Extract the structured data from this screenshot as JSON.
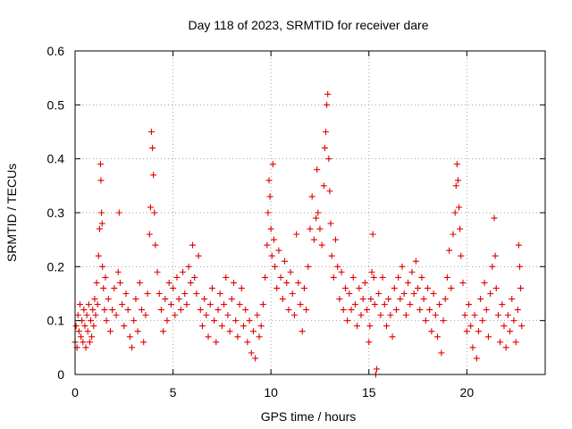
{
  "chart_data": {
    "type": "scatter",
    "title": "Day 118 of 2023, SRMTID for receiver dare",
    "xlabel": "GPS time / hours",
    "ylabel": "SRMTID / TECUs",
    "xlim": [
      0,
      24
    ],
    "ylim": [
      0,
      0.6
    ],
    "xticks": [
      0,
      5,
      10,
      15,
      20
    ],
    "yticks": [
      0,
      0.1,
      0.2,
      0.3,
      0.4,
      0.5,
      0.6
    ],
    "xtick_labels": [
      "0",
      "5",
      "10",
      "15",
      "20"
    ],
    "ytick_labels": [
      "0",
      "0.1",
      "0.2",
      "0.3",
      "0.4",
      "0.5",
      "0.6"
    ],
    "grid": true,
    "marker": "+",
    "color": "#e00000",
    "series": [
      {
        "name": "SRMTID",
        "points": [
          [
            0.0,
            0.06
          ],
          [
            0.05,
            0.09
          ],
          [
            0.1,
            0.05
          ],
          [
            0.15,
            0.11
          ],
          [
            0.2,
            0.08
          ],
          [
            0.25,
            0.13
          ],
          [
            0.3,
            0.07
          ],
          [
            0.35,
            0.1
          ],
          [
            0.4,
            0.06
          ],
          [
            0.45,
            0.12
          ],
          [
            0.5,
            0.09
          ],
          [
            0.55,
            0.05
          ],
          [
            0.6,
            0.11
          ],
          [
            0.65,
            0.08
          ],
          [
            0.7,
            0.13
          ],
          [
            0.75,
            0.06
          ],
          [
            0.8,
            0.1
          ],
          [
            0.85,
            0.07
          ],
          [
            0.9,
            0.12
          ],
          [
            0.95,
            0.09
          ],
          [
            1.0,
            0.14
          ],
          [
            1.05,
            0.11
          ],
          [
            1.1,
            0.17
          ],
          [
            1.15,
            0.13
          ],
          [
            1.2,
            0.22
          ],
          [
            1.25,
            0.27
          ],
          [
            1.3,
            0.39
          ],
          [
            1.32,
            0.36
          ],
          [
            1.35,
            0.3
          ],
          [
            1.38,
            0.28
          ],
          [
            1.4,
            0.2
          ],
          [
            1.45,
            0.16
          ],
          [
            1.5,
            0.12
          ],
          [
            1.55,
            0.18
          ],
          [
            1.6,
            0.1
          ],
          [
            1.7,
            0.14
          ],
          [
            1.8,
            0.08
          ],
          [
            1.9,
            0.12
          ],
          [
            2.0,
            0.16
          ],
          [
            2.1,
            0.11
          ],
          [
            2.2,
            0.19
          ],
          [
            2.25,
            0.3
          ],
          [
            2.3,
            0.17
          ],
          [
            2.4,
            0.13
          ],
          [
            2.5,
            0.09
          ],
          [
            2.6,
            0.15
          ],
          [
            2.7,
            0.12
          ],
          [
            2.8,
            0.07
          ],
          [
            2.9,
            0.05
          ],
          [
            3.0,
            0.1
          ],
          [
            3.1,
            0.14
          ],
          [
            3.2,
            0.08
          ],
          [
            3.3,
            0.17
          ],
          [
            3.4,
            0.12
          ],
          [
            3.5,
            0.06
          ],
          [
            3.6,
            0.11
          ],
          [
            3.7,
            0.15
          ],
          [
            3.8,
            0.26
          ],
          [
            3.85,
            0.31
          ],
          [
            3.9,
            0.45
          ],
          [
            3.95,
            0.42
          ],
          [
            4.0,
            0.37
          ],
          [
            4.05,
            0.3
          ],
          [
            4.1,
            0.24
          ],
          [
            4.2,
            0.19
          ],
          [
            4.3,
            0.15
          ],
          [
            4.4,
            0.12
          ],
          [
            4.5,
            0.08
          ],
          [
            4.6,
            0.14
          ],
          [
            4.7,
            0.1
          ],
          [
            4.8,
            0.17
          ],
          [
            4.9,
            0.13
          ],
          [
            5.0,
            0.16
          ],
          [
            5.1,
            0.11
          ],
          [
            5.2,
            0.18
          ],
          [
            5.3,
            0.14
          ],
          [
            5.4,
            0.12
          ],
          [
            5.5,
            0.19
          ],
          [
            5.6,
            0.15
          ],
          [
            5.7,
            0.13
          ],
          [
            5.8,
            0.2
          ],
          [
            5.9,
            0.17
          ],
          [
            6.0,
            0.24
          ],
          [
            6.1,
            0.18
          ],
          [
            6.2,
            0.15
          ],
          [
            6.3,
            0.22
          ],
          [
            6.4,
            0.12
          ],
          [
            6.5,
            0.09
          ],
          [
            6.6,
            0.14
          ],
          [
            6.7,
            0.11
          ],
          [
            6.8,
            0.07
          ],
          [
            6.9,
            0.13
          ],
          [
            7.0,
            0.16
          ],
          [
            7.1,
            0.1
          ],
          [
            7.2,
            0.06
          ],
          [
            7.3,
            0.12
          ],
          [
            7.4,
            0.15
          ],
          [
            7.5,
            0.09
          ],
          [
            7.6,
            0.13
          ],
          [
            7.7,
            0.18
          ],
          [
            7.8,
            0.11
          ],
          [
            7.9,
            0.08
          ],
          [
            8.0,
            0.14
          ],
          [
            8.1,
            0.17
          ],
          [
            8.2,
            0.1
          ],
          [
            8.3,
            0.07
          ],
          [
            8.4,
            0.13
          ],
          [
            8.5,
            0.16
          ],
          [
            8.6,
            0.09
          ],
          [
            8.7,
            0.12
          ],
          [
            8.8,
            0.06
          ],
          [
            8.9,
            0.1
          ],
          [
            9.0,
            0.04
          ],
          [
            9.1,
            0.08
          ],
          [
            9.2,
            0.03
          ],
          [
            9.3,
            0.11
          ],
          [
            9.4,
            0.07
          ],
          [
            9.5,
            0.09
          ],
          [
            9.6,
            0.13
          ],
          [
            9.7,
            0.18
          ],
          [
            9.8,
            0.24
          ],
          [
            9.85,
            0.3
          ],
          [
            9.9,
            0.36
          ],
          [
            9.95,
            0.33
          ],
          [
            10.0,
            0.27
          ],
          [
            10.05,
            0.22
          ],
          [
            10.1,
            0.39
          ],
          [
            10.15,
            0.25
          ],
          [
            10.2,
            0.2
          ],
          [
            10.3,
            0.16
          ],
          [
            10.4,
            0.23
          ],
          [
            10.5,
            0.18
          ],
          [
            10.6,
            0.14
          ],
          [
            10.7,
            0.21
          ],
          [
            10.8,
            0.17
          ],
          [
            10.9,
            0.12
          ],
          [
            11.0,
            0.19
          ],
          [
            11.1,
            0.15
          ],
          [
            11.2,
            0.11
          ],
          [
            11.3,
            0.26
          ],
          [
            11.4,
            0.17
          ],
          [
            11.5,
            0.13
          ],
          [
            11.6,
            0.08
          ],
          [
            11.7,
            0.16
          ],
          [
            11.8,
            0.12
          ],
          [
            11.9,
            0.2
          ],
          [
            12.0,
            0.27
          ],
          [
            12.1,
            0.33
          ],
          [
            12.2,
            0.25
          ],
          [
            12.3,
            0.29
          ],
          [
            12.35,
            0.38
          ],
          [
            12.4,
            0.3
          ],
          [
            12.5,
            0.27
          ],
          [
            12.6,
            0.24
          ],
          [
            12.7,
            0.35
          ],
          [
            12.75,
            0.42
          ],
          [
            12.8,
            0.45
          ],
          [
            12.85,
            0.5
          ],
          [
            12.9,
            0.52
          ],
          [
            12.95,
            0.4
          ],
          [
            13.0,
            0.34
          ],
          [
            13.05,
            0.28
          ],
          [
            13.1,
            0.22
          ],
          [
            13.2,
            0.18
          ],
          [
            13.3,
            0.25
          ],
          [
            13.4,
            0.2
          ],
          [
            13.5,
            0.14
          ],
          [
            13.6,
            0.19
          ],
          [
            13.7,
            0.12
          ],
          [
            13.8,
            0.16
          ],
          [
            13.9,
            0.1
          ],
          [
            14.0,
            0.15
          ],
          [
            14.1,
            0.12
          ],
          [
            14.2,
            0.18
          ],
          [
            14.3,
            0.13
          ],
          [
            14.4,
            0.09
          ],
          [
            14.5,
            0.16
          ],
          [
            14.6,
            0.11
          ],
          [
            14.7,
            0.14
          ],
          [
            14.8,
            0.17
          ],
          [
            14.9,
            0.12
          ],
          [
            15.0,
            0.06
          ],
          [
            15.05,
            0.09
          ],
          [
            15.1,
            0.14
          ],
          [
            15.15,
            0.19
          ],
          [
            15.2,
            0.26
          ],
          [
            15.25,
            0.18
          ],
          [
            15.3,
            0.13
          ],
          [
            15.35,
            0.0
          ],
          [
            15.4,
            0.01
          ],
          [
            15.5,
            0.15
          ],
          [
            15.6,
            0.11
          ],
          [
            15.7,
            0.18
          ],
          [
            15.8,
            0.13
          ],
          [
            15.9,
            0.09
          ],
          [
            16.0,
            0.14
          ],
          [
            16.1,
            0.11
          ],
          [
            16.2,
            0.07
          ],
          [
            16.3,
            0.16
          ],
          [
            16.4,
            0.12
          ],
          [
            16.5,
            0.18
          ],
          [
            16.6,
            0.14
          ],
          [
            16.7,
            0.2
          ],
          [
            16.8,
            0.15
          ],
          [
            16.9,
            0.11
          ],
          [
            17.0,
            0.17
          ],
          [
            17.1,
            0.13
          ],
          [
            17.2,
            0.19
          ],
          [
            17.3,
            0.15
          ],
          [
            17.4,
            0.21
          ],
          [
            17.5,
            0.16
          ],
          [
            17.6,
            0.12
          ],
          [
            17.7,
            0.18
          ],
          [
            17.8,
            0.14
          ],
          [
            17.9,
            0.1
          ],
          [
            18.0,
            0.16
          ],
          [
            18.1,
            0.12
          ],
          [
            18.2,
            0.08
          ],
          [
            18.3,
            0.15
          ],
          [
            18.4,
            0.11
          ],
          [
            18.5,
            0.07
          ],
          [
            18.6,
            0.13
          ],
          [
            18.7,
            0.04
          ],
          [
            18.8,
            0.1
          ],
          [
            18.9,
            0.14
          ],
          [
            19.0,
            0.18
          ],
          [
            19.1,
            0.23
          ],
          [
            19.2,
            0.16
          ],
          [
            19.3,
            0.26
          ],
          [
            19.4,
            0.3
          ],
          [
            19.45,
            0.35
          ],
          [
            19.5,
            0.39
          ],
          [
            19.55,
            0.36
          ],
          [
            19.6,
            0.31
          ],
          [
            19.65,
            0.27
          ],
          [
            19.7,
            0.22
          ],
          [
            19.8,
            0.17
          ],
          [
            19.9,
            0.11
          ],
          [
            20.0,
            0.08
          ],
          [
            20.1,
            0.13
          ],
          [
            20.2,
            0.09
          ],
          [
            20.3,
            0.05
          ],
          [
            20.4,
            0.11
          ],
          [
            20.5,
            0.03
          ],
          [
            20.6,
            0.08
          ],
          [
            20.7,
            0.14
          ],
          [
            20.8,
            0.1
          ],
          [
            20.9,
            0.17
          ],
          [
            21.0,
            0.12
          ],
          [
            21.1,
            0.07
          ],
          [
            21.2,
            0.15
          ],
          [
            21.3,
            0.2
          ],
          [
            21.4,
            0.29
          ],
          [
            21.45,
            0.22
          ],
          [
            21.5,
            0.16
          ],
          [
            21.6,
            0.11
          ],
          [
            21.7,
            0.06
          ],
          [
            21.8,
            0.13
          ],
          [
            21.9,
            0.09
          ],
          [
            22.0,
            0.05
          ],
          [
            22.1,
            0.11
          ],
          [
            22.2,
            0.08
          ],
          [
            22.3,
            0.14
          ],
          [
            22.4,
            0.1
          ],
          [
            22.5,
            0.06
          ],
          [
            22.6,
            0.12
          ],
          [
            22.65,
            0.24
          ],
          [
            22.7,
            0.2
          ],
          [
            22.75,
            0.16
          ],
          [
            22.8,
            0.09
          ]
        ]
      }
    ]
  }
}
